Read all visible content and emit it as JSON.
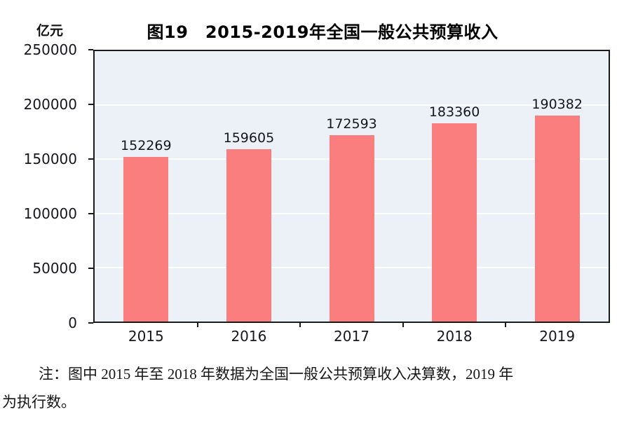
{
  "chart": {
    "unit_label": "亿元",
    "title": "图19　2015-2019年全国一般公共预算收入"
  },
  "note": {
    "lines": [
      "注：图中 2015 年至 2018 年数据为全国一般公共预算收入决算数，2019 年",
      "为执行数。"
    ]
  },
  "chart_data": {
    "type": "bar",
    "title": "图19　2015-2019年全国一般公共预算收入",
    "categories": [
      "2015",
      "2016",
      "2017",
      "2018",
      "2019"
    ],
    "values": [
      152269,
      159605,
      172593,
      183360,
      190382
    ],
    "value_labels": [
      "152269",
      "159605",
      "172593",
      "183360",
      "190382"
    ],
    "xlabel": "",
    "ylabel": "亿元",
    "ylim": [
      0,
      250000
    ],
    "yticks": [
      0,
      50000,
      100000,
      150000,
      200000,
      250000
    ],
    "ytick_labels": [
      "0",
      "50000",
      "100000",
      "150000",
      "200000",
      "250000"
    ],
    "grid": true,
    "legend": "none",
    "data_labels": "above bars",
    "colors": {
      "bar_fill": "#FB7E7E",
      "plot_background": "#EBF1F6",
      "gridline": "#FFFFFF",
      "axis_border": "#1A1A1A",
      "text": "#111111"
    }
  }
}
